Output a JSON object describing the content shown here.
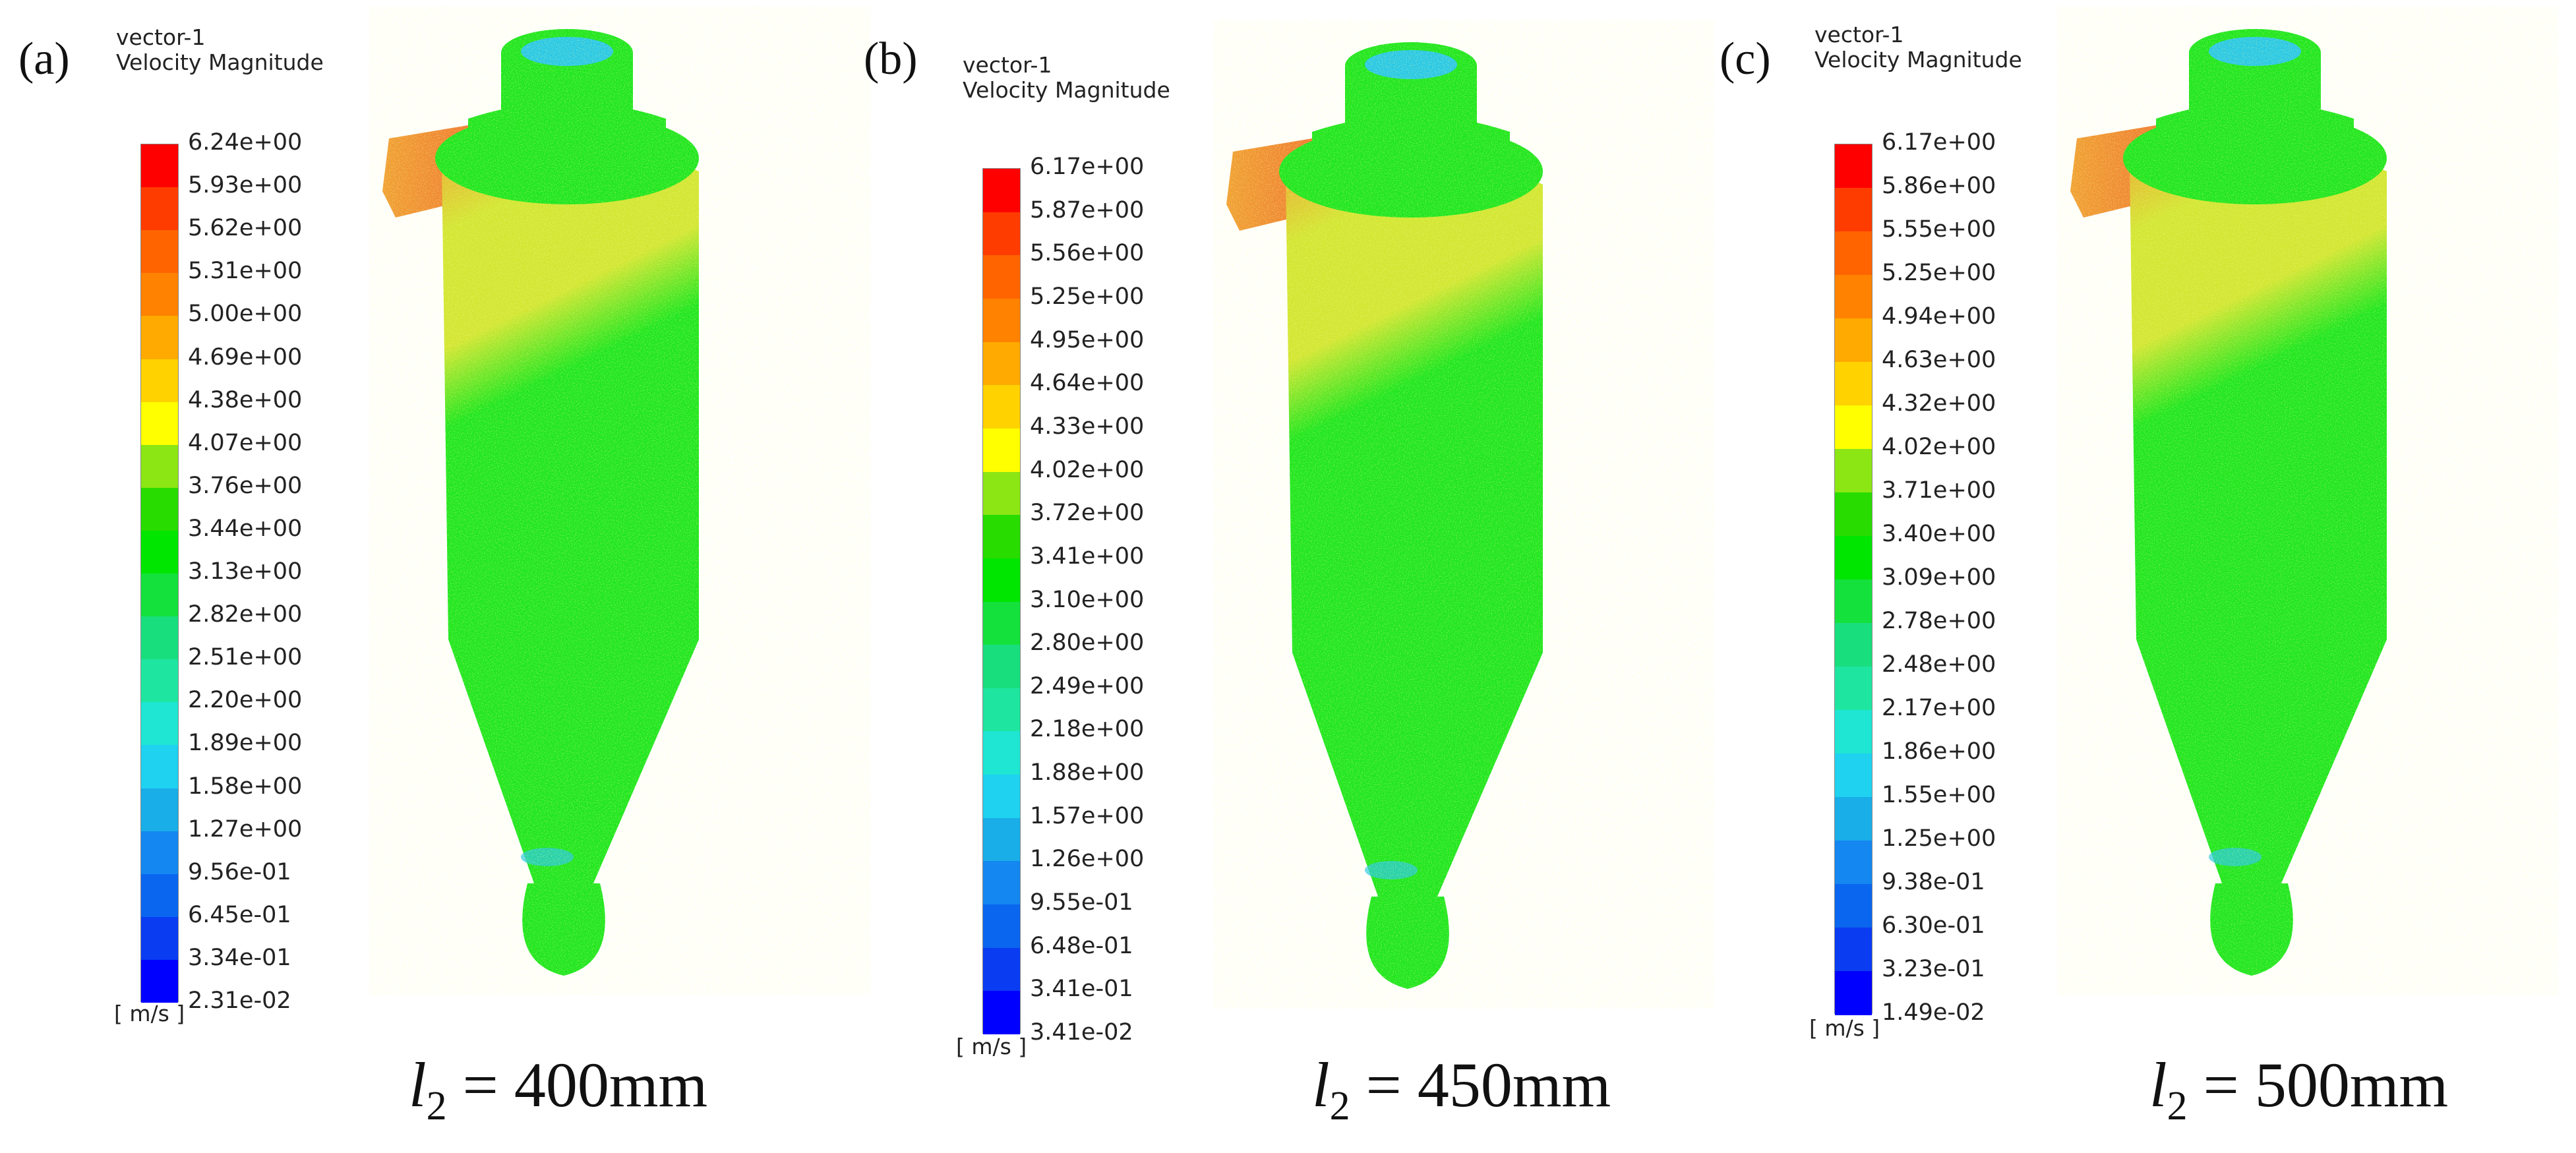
{
  "colorbar_colors": [
    "#0000ff",
    "#0a3cf2",
    "#0a66ef",
    "#1487f0",
    "#19aee8",
    "#1ed2f0",
    "#1ee6d2",
    "#1ee6a0",
    "#19de7d",
    "#14e13c",
    "#00e600",
    "#28dc00",
    "#8ce614",
    "#ffff00",
    "#ffd200",
    "#ffaa00",
    "#ff8200",
    "#ff6400",
    "#ff3c00",
    "#ff0000"
  ],
  "cyclone_colors": {
    "blue": "#28c8e6",
    "green": "#1ee61e",
    "yellow": "#d2e632",
    "orange": "#f0a032",
    "red": "#ee6432"
  },
  "panels": [
    {
      "label": "(a)",
      "vector_title": "vector-1",
      "quantity": "Velocity Magnitude",
      "ticks": [
        "6.24e+00",
        "5.93e+00",
        "5.62e+00",
        "5.31e+00",
        "5.00e+00",
        "4.69e+00",
        "4.38e+00",
        "4.07e+00",
        "3.76e+00",
        "3.44e+00",
        "3.13e+00",
        "2.82e+00",
        "2.51e+00",
        "2.20e+00",
        "1.89e+00",
        "1.58e+00",
        "1.27e+00",
        "9.56e-01",
        "6.45e-01",
        "3.34e-01",
        "2.31e-02"
      ],
      "unit": "[ m/s ]",
      "caption_symbol": "l",
      "caption_sub": "2",
      "caption_value": " = 400mm"
    },
    {
      "label": "(b)",
      "vector_title": "vector-1",
      "quantity": "Velocity Magnitude",
      "ticks": [
        "6.17e+00",
        "5.87e+00",
        "5.56e+00",
        "5.25e+00",
        "4.95e+00",
        "4.64e+00",
        "4.33e+00",
        "4.02e+00",
        "3.72e+00",
        "3.41e+00",
        "3.10e+00",
        "2.80e+00",
        "2.49e+00",
        "2.18e+00",
        "1.88e+00",
        "1.57e+00",
        "1.26e+00",
        "9.55e-01",
        "6.48e-01",
        "3.41e-01",
        "3.41e-02"
      ],
      "unit": "[ m/s ]",
      "caption_symbol": "l",
      "caption_sub": "2",
      "caption_value": " = 450mm"
    },
    {
      "label": "(c)",
      "vector_title": "vector-1",
      "quantity": "Velocity Magnitude",
      "ticks": [
        "6.17e+00",
        "5.86e+00",
        "5.55e+00",
        "5.25e+00",
        "4.94e+00",
        "4.63e+00",
        "4.32e+00",
        "4.02e+00",
        "3.71e+00",
        "3.40e+00",
        "3.09e+00",
        "2.78e+00",
        "2.48e+00",
        "2.17e+00",
        "1.86e+00",
        "1.55e+00",
        "1.25e+00",
        "9.38e-01",
        "6.30e-01",
        "3.23e-01",
        "1.49e-02"
      ],
      "unit": "[ m/s ]",
      "caption_symbol": "l",
      "caption_sub": "2",
      "caption_value": " = 500mm"
    }
  ]
}
